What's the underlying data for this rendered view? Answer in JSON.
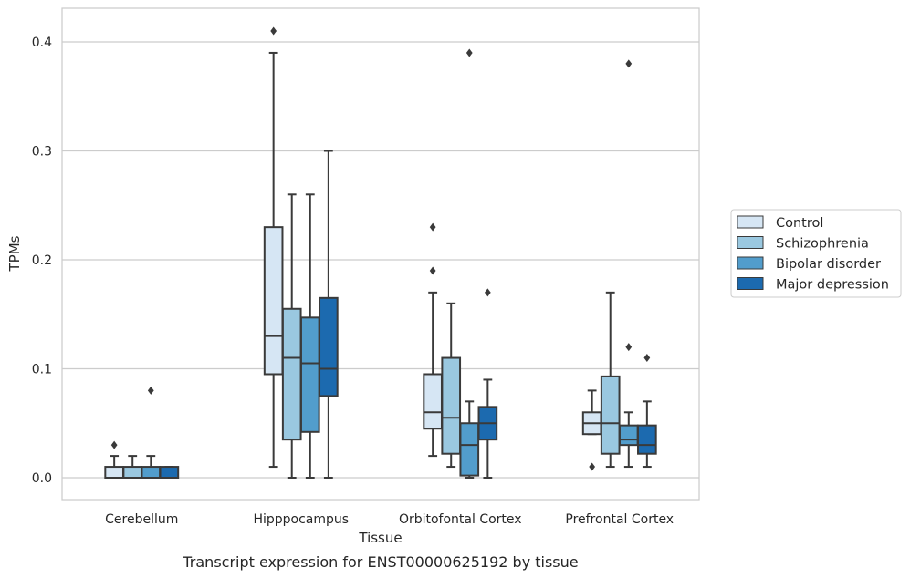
{
  "chart_data": {
    "type": "box",
    "caption": "Transcript expression for ENST00000625192 by tissue",
    "xlabel": "Tissue",
    "ylabel": "TPMs",
    "ylim": [
      -0.02,
      0.432
    ],
    "yticks": [
      0.0,
      0.1,
      0.2,
      0.3,
      0.4
    ],
    "ytick_labels": [
      "0.0",
      "0.1",
      "0.2",
      "0.3",
      "0.4"
    ],
    "grid": "horizontal",
    "legend_position": "right",
    "categories": [
      "Cerebellum",
      "Hipppocampus",
      "Orbitofontal Cortex",
      "Prefrontal Cortex"
    ],
    "series": [
      {
        "name": "Control",
        "color": "#d6e6f4",
        "boxes": [
          {
            "whislo": 0.0,
            "q1": 0.0,
            "med": 0.0,
            "q3": 0.01,
            "whishi": 0.02,
            "fliers": [
              0.03
            ]
          },
          {
            "whislo": 0.01,
            "q1": 0.095,
            "med": 0.13,
            "q3": 0.23,
            "whishi": 0.39,
            "fliers": [
              0.41
            ]
          },
          {
            "whislo": 0.02,
            "q1": 0.045,
            "med": 0.06,
            "q3": 0.095,
            "whishi": 0.17,
            "fliers": [
              0.19,
              0.23
            ]
          },
          {
            "whislo": 0.04,
            "q1": 0.04,
            "med": 0.05,
            "q3": 0.06,
            "whishi": 0.08,
            "fliers": [
              0.01
            ]
          }
        ]
      },
      {
        "name": "Schizophrenia",
        "color": "#9ac8e0",
        "boxes": [
          {
            "whislo": 0.0,
            "q1": 0.0,
            "med": 0.0,
            "q3": 0.01,
            "whishi": 0.02,
            "fliers": []
          },
          {
            "whislo": 0.0,
            "q1": 0.035,
            "med": 0.11,
            "q3": 0.155,
            "whishi": 0.26,
            "fliers": []
          },
          {
            "whislo": 0.01,
            "q1": 0.022,
            "med": 0.055,
            "q3": 0.11,
            "whishi": 0.16,
            "fliers": []
          },
          {
            "whislo": 0.01,
            "q1": 0.022,
            "med": 0.05,
            "q3": 0.093,
            "whishi": 0.17,
            "fliers": []
          }
        ]
      },
      {
        "name": "Bipolar disorder",
        "color": "#529dcc",
        "boxes": [
          {
            "whislo": 0.0,
            "q1": 0.0,
            "med": 0.0,
            "q3": 0.01,
            "whishi": 0.02,
            "fliers": [
              0.08
            ]
          },
          {
            "whislo": 0.0,
            "q1": 0.042,
            "med": 0.105,
            "q3": 0.147,
            "whishi": 0.26,
            "fliers": []
          },
          {
            "whislo": 0.0,
            "q1": 0.002,
            "med": 0.03,
            "q3": 0.05,
            "whishi": 0.07,
            "fliers": [
              0.39
            ]
          },
          {
            "whislo": 0.01,
            "q1": 0.03,
            "med": 0.035,
            "q3": 0.048,
            "whishi": 0.06,
            "fliers": [
              0.12,
              0.38
            ]
          }
        ]
      },
      {
        "name": "Major depression",
        "color": "#1c6aaf",
        "boxes": [
          {
            "whislo": 0.0,
            "q1": 0.0,
            "med": 0.0,
            "q3": 0.01,
            "whishi": 0.01,
            "fliers": []
          },
          {
            "whislo": 0.0,
            "q1": 0.075,
            "med": 0.1,
            "q3": 0.165,
            "whishi": 0.3,
            "fliers": []
          },
          {
            "whislo": 0.0,
            "q1": 0.035,
            "med": 0.05,
            "q3": 0.065,
            "whishi": 0.09,
            "fliers": [
              0.17
            ]
          },
          {
            "whislo": 0.01,
            "q1": 0.022,
            "med": 0.03,
            "q3": 0.048,
            "whishi": 0.07,
            "fliers": [
              0.11
            ]
          }
        ]
      }
    ]
  }
}
